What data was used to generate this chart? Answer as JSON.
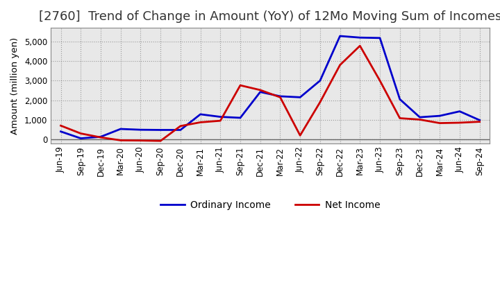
{
  "title": "[2760]  Trend of Change in Amount (YoY) of 12Mo Moving Sum of Incomes",
  "ylabel": "Amount (million yen)",
  "background_color": "#ffffff",
  "plot_bg_color": "#e8e8e8",
  "grid_color": "#999999",
  "x_labels": [
    "Jun-19",
    "Sep-19",
    "Dec-19",
    "Mar-20",
    "Jun-20",
    "Sep-20",
    "Dec-20",
    "Mar-21",
    "Jun-21",
    "Sep-21",
    "Dec-21",
    "Mar-22",
    "Jun-22",
    "Sep-22",
    "Dec-22",
    "Mar-23",
    "Jun-23",
    "Sep-23",
    "Dec-23",
    "Mar-24",
    "Jun-24",
    "Sep-24"
  ],
  "ordinary_income": [
    400,
    50,
    130,
    530,
    490,
    480,
    480,
    1280,
    1150,
    1100,
    2420,
    2200,
    2150,
    3000,
    5280,
    5200,
    5180,
    2050,
    1130,
    1200,
    1430,
    980
  ],
  "net_income": [
    700,
    300,
    100,
    -50,
    -60,
    -80,
    680,
    870,
    950,
    2760,
    2520,
    2150,
    200,
    1900,
    3800,
    4780,
    3000,
    1080,
    1010,
    830,
    850,
    900
  ],
  "ordinary_color": "#0000cc",
  "net_color": "#cc0000",
  "ylim": [
    -200,
    5700
  ],
  "yticks": [
    0,
    1000,
    2000,
    3000,
    4000,
    5000
  ],
  "line_width": 2.0,
  "title_fontsize": 13,
  "legend_fontsize": 10,
  "tick_fontsize": 8.5
}
